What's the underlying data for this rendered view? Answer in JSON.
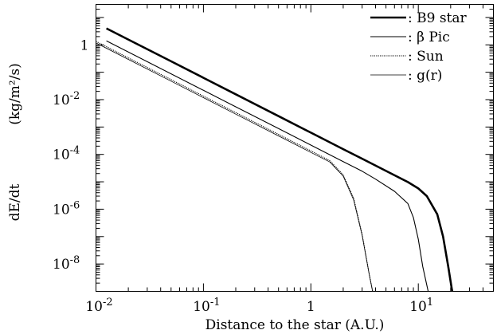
{
  "chart_data": {
    "type": "line",
    "xlabel": "Distance to the star (A.U.)",
    "ylabel_left": "dE/dt",
    "ylabel_units": "(kg/m²/s)",
    "x_scale": "log",
    "y_scale": "log",
    "xlim": [
      0.01,
      50
    ],
    "ylim": [
      1e-09,
      30
    ],
    "x_ticks": [
      {
        "value": 0.01,
        "base": "10",
        "exp": "-2"
      },
      {
        "value": 0.1,
        "base": "10",
        "exp": "-1"
      },
      {
        "value": 1,
        "base": "1",
        "exp": ""
      },
      {
        "value": 10,
        "base": "10",
        "exp": "1"
      }
    ],
    "y_ticks": [
      {
        "value": 1,
        "base": "1",
        "exp": ""
      },
      {
        "value": 0.01,
        "base": "10",
        "exp": "-2"
      },
      {
        "value": 0.0001,
        "base": "10",
        "exp": "-4"
      },
      {
        "value": 1e-06,
        "base": "10",
        "exp": "-6"
      },
      {
        "value": 1e-08,
        "base": "10",
        "exp": "-8"
      }
    ],
    "legend_position": "top-right",
    "series": [
      {
        "name": ": B9 star",
        "style": "thick-solid",
        "x": [
          0.0125,
          0.02,
          0.05,
          0.1,
          0.2,
          0.5,
          1,
          2,
          3,
          5,
          8,
          10,
          12,
          15,
          17,
          19,
          20.5,
          21
        ],
        "y": [
          4.0,
          1.56,
          0.25,
          0.0625,
          0.0156,
          0.0025,
          0.000625,
          0.000156,
          6.94e-05,
          2.5e-05,
          9.8e-06,
          5.7e-06,
          3e-06,
          6.5e-07,
          1e-07,
          8e-09,
          1.2e-09,
          8e-10
        ]
      },
      {
        "name": ": β Pic",
        "style": "solid",
        "x": [
          0.0125,
          0.02,
          0.05,
          0.1,
          0.2,
          0.5,
          1,
          2,
          3,
          4,
          6,
          8,
          9,
          10,
          11,
          12.5
        ],
        "y": [
          1.4,
          0.547,
          0.0875,
          0.0219,
          0.00547,
          0.000875,
          0.000219,
          5.47e-05,
          2.43e-05,
          1.25e-05,
          4.5e-06,
          1.6e-06,
          5e-07,
          8e-08,
          8e-09,
          8e-10
        ]
      },
      {
        "name": ": Sun",
        "style": "dotted",
        "x": [
          0.01,
          0.02,
          0.05,
          0.1,
          0.2,
          0.5,
          1,
          1.5,
          2,
          2.5,
          3,
          3.5,
          3.8
        ],
        "y": [
          1.34,
          0.335,
          0.0536,
          0.0134,
          0.00335,
          0.000536,
          0.000134,
          5.9e-05,
          1.8e-05,
          2.5e-06,
          1.2e-07,
          4e-09,
          8e-10
        ]
      },
      {
        "name": ": g(r)",
        "style": "thin-solid",
        "x": [
          0.01,
          0.02,
          0.05,
          0.1,
          0.2,
          0.5,
          1,
          1.5,
          2,
          2.5,
          3,
          3.5,
          3.8
        ],
        "y": [
          1.18,
          0.295,
          0.0472,
          0.0118,
          0.00295,
          0.000472,
          0.000118,
          5.3e-05,
          1.6e-05,
          2.2e-06,
          1.1e-07,
          4e-09,
          8e-10
        ]
      }
    ]
  }
}
